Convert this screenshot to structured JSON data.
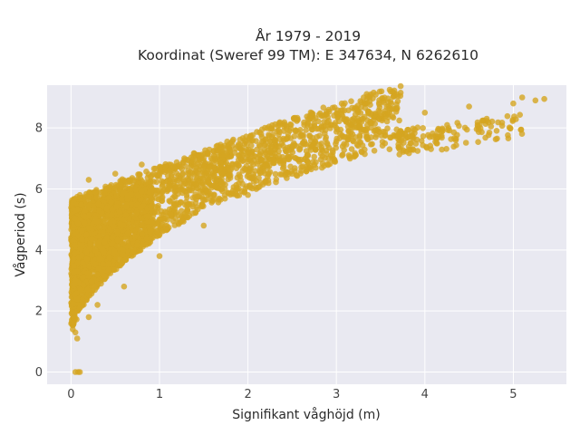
{
  "chart_data": {
    "type": "scatter",
    "title_lines": [
      "År 1979 - 2019",
      "Koordinat (Sweref 99 TM): E 347634, N 6262610"
    ],
    "xlabel": "Signifikant våghöjd (m)",
    "ylabel": "Vågperiod (s)",
    "xlim": [
      -0.27,
      5.6
    ],
    "ylim": [
      -0.4,
      9.4
    ],
    "x_ticks": [
      0,
      1,
      2,
      3,
      4,
      5
    ],
    "y_ticks": [
      0,
      2,
      4,
      6,
      8
    ],
    "grid": true,
    "colors": {
      "marker": "#d4a520",
      "plot_bg": "#e9e9f1",
      "grid": "#ffffff"
    },
    "series": [
      {
        "points": [
          [
            0.05,
            0.0
          ],
          [
            0.08,
            0.0
          ],
          [
            0.1,
            0.0
          ],
          [
            0.02,
            1.4
          ],
          [
            0.03,
            1.6
          ],
          [
            0.05,
            1.3
          ],
          [
            0.07,
            1.1
          ],
          [
            0.05,
            5.3
          ],
          [
            0.1,
            5.8
          ],
          [
            0.2,
            6.3
          ],
          [
            0.5,
            6.5
          ],
          [
            0.8,
            6.8
          ],
          [
            0.9,
            6.4
          ],
          [
            1.0,
            6.7
          ],
          [
            1.5,
            7.0
          ],
          [
            2.0,
            7.2
          ],
          [
            2.3,
            7.6
          ],
          [
            3.0,
            8.0
          ],
          [
            3.3,
            8.3
          ],
          [
            3.5,
            8.4
          ],
          [
            4.0,
            8.5
          ],
          [
            4.5,
            8.7
          ],
          [
            5.0,
            8.8
          ],
          [
            5.1,
            9.0
          ],
          [
            5.25,
            8.9
          ],
          [
            5.35,
            8.95
          ],
          [
            4.7,
            8.3
          ],
          [
            4.2,
            7.9
          ],
          [
            3.6,
            7.3
          ],
          [
            2.5,
            6.5
          ],
          [
            2.0,
            5.8
          ],
          [
            1.5,
            4.8
          ],
          [
            1.0,
            3.8
          ],
          [
            0.6,
            2.8
          ],
          [
            0.3,
            2.2
          ],
          [
            0.2,
            1.8
          ]
        ]
      }
    ]
  }
}
